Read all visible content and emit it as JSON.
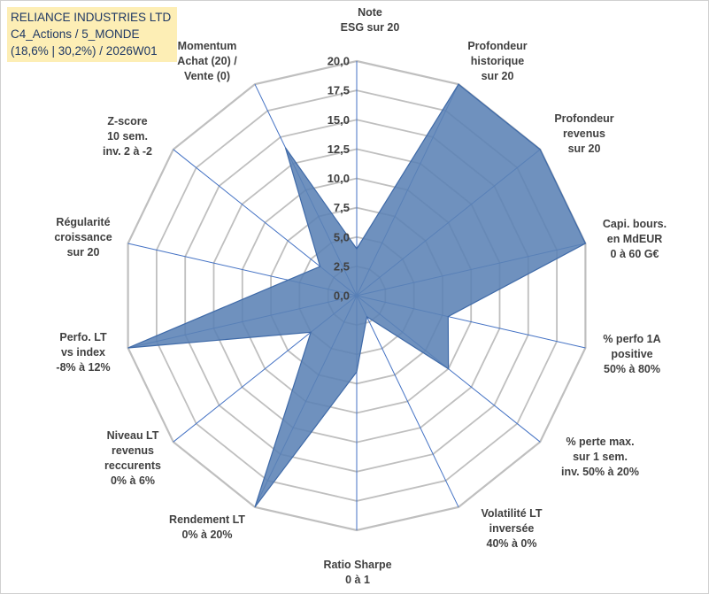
{
  "title_box": {
    "line1": "RELIANCE INDUSTRIES LTD",
    "line2": "C4_Actions / 5_MONDE",
    "line3": "(18,6% | 30,2%) / 2026W01"
  },
  "colors": {
    "fill": "#5b82b5",
    "stroke": "#3f6aa8",
    "grid": "#bfbfbf",
    "spoke": "#4472c4",
    "title_bg": "#fdeeb5",
    "title_text": "#1f3864"
  },
  "chart_data": {
    "type": "radar",
    "rmax": 20,
    "ticks": [
      "0,0",
      "2,5",
      "5,0",
      "7,5",
      "10,0",
      "12,5",
      "15,0",
      "17,5",
      "20,0"
    ],
    "tick_values": [
      0,
      2.5,
      5,
      7.5,
      10,
      12.5,
      15,
      17.5,
      20
    ],
    "axes": [
      {
        "label": [
          "Note",
          "ESG sur 20"
        ],
        "value": 4
      },
      {
        "label": [
          "Profondeur",
          "historique",
          "sur 20"
        ],
        "value": 20
      },
      {
        "label": [
          "Profondeur",
          "revenus",
          "sur 20"
        ],
        "value": 20
      },
      {
        "label": [
          "Capi. bours.",
          "en MdEUR",
          "0 à 60 G€"
        ],
        "value": 20
      },
      {
        "label": [
          "% perfo 1A",
          "positive",
          "50% à 80%"
        ],
        "value": 8
      },
      {
        "label": [
          "% perte max.",
          "sur 1 sem.",
          "inv. 50% à 20%"
        ],
        "value": 10
      },
      {
        "label": [
          "Volatilité LT",
          "inversée",
          "40% à 0%"
        ],
        "value": 2
      },
      {
        "label": [
          "Ratio Sharpe",
          "0 à 1"
        ],
        "value": 6.5
      },
      {
        "label": [
          "Rendement LT",
          "0% à 20%"
        ],
        "value": 20
      },
      {
        "label": [
          "Niveau LT",
          "revenus",
          "reccurents",
          "0% à 6%"
        ],
        "value": 5
      },
      {
        "label": [
          "Perfo. LT",
          "vs index",
          "-8% à 12%"
        ],
        "value": 20
      },
      {
        "label": [
          "Régularité",
          "croissance",
          "sur 20"
        ],
        "value": 6
      },
      {
        "label": [
          "Z-score",
          "10 sem.",
          "inv. 2 à -2"
        ],
        "value": 4
      },
      {
        "label": [
          "Momentum",
          "Achat (20) /",
          "Vente (0)"
        ],
        "value": 14
      }
    ]
  }
}
